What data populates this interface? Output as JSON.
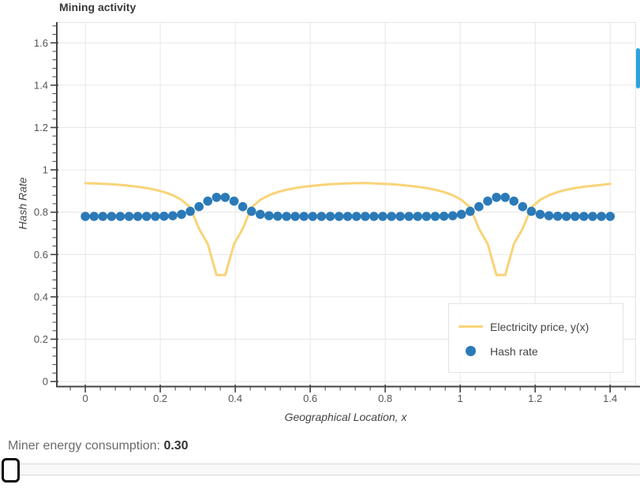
{
  "colors": {
    "electricity": "#f9d377",
    "hash": "#2b7ab8",
    "grid": "#e6e6e6",
    "frame_outline": "#e5e5e5",
    "axis": "#444444",
    "tick_label": "#555555",
    "scrollbar": "#2ea2db"
  },
  "chart_data": {
    "type": "line+scatter",
    "title": "Mining activity",
    "xlabel": "Geographical Location, x",
    "ylabel": "Hash Rate",
    "xlim": [
      -0.076,
      1.467
    ],
    "ylim": [
      -0.022,
      1.698
    ],
    "x_ticks": [
      0,
      0.2,
      0.4,
      0.6,
      0.8,
      1,
      1.2,
      1.4
    ],
    "y_ticks": [
      0,
      0.2,
      0.4,
      0.6,
      0.8,
      1,
      1.2,
      1.4,
      1.6
    ],
    "x_minor_step": 0.04,
    "y_minor_step": 0.04,
    "grid": true,
    "legend_position": "bottom-right",
    "x": [
      0,
      0.0233,
      0.0467,
      0.07,
      0.0933,
      0.1167,
      0.14,
      0.1633,
      0.1867,
      0.21,
      0.2333,
      0.2567,
      0.28,
      0.3033,
      0.3267,
      0.35,
      0.3733,
      0.3967,
      0.42,
      0.4433,
      0.4667,
      0.49,
      0.5133,
      0.5367,
      0.56,
      0.5833,
      0.6067,
      0.63,
      0.6533,
      0.6767,
      0.7,
      0.7233,
      0.7467,
      0.77,
      0.7933,
      0.8167,
      0.84,
      0.8633,
      0.8867,
      0.91,
      0.9333,
      0.9567,
      0.98,
      1.0033,
      1.0267,
      1.05,
      1.0733,
      1.0967,
      1.12,
      1.1433,
      1.1667,
      1.19,
      1.2133,
      1.2367,
      1.26,
      1.2833,
      1.3067,
      1.33,
      1.3533,
      1.3767,
      1.4
    ],
    "series": [
      {
        "name": "Electricity price, y(x)",
        "type": "line",
        "color": "#f9d377",
        "line_width": 3,
        "y": [
          0.937,
          0.936,
          0.934,
          0.932,
          0.929,
          0.925,
          0.92,
          0.914,
          0.906,
          0.895,
          0.88,
          0.858,
          0.823,
          0.722,
          0.65,
          0.503,
          0.503,
          0.65,
          0.722,
          0.823,
          0.858,
          0.88,
          0.895,
          0.906,
          0.914,
          0.92,
          0.925,
          0.929,
          0.932,
          0.934,
          0.936,
          0.937,
          0.938,
          0.936,
          0.934,
          0.932,
          0.929,
          0.925,
          0.92,
          0.914,
          0.906,
          0.895,
          0.88,
          0.858,
          0.823,
          0.722,
          0.65,
          0.503,
          0.503,
          0.65,
          0.722,
          0.823,
          0.858,
          0.88,
          0.895,
          0.906,
          0.914,
          0.92,
          0.925,
          0.929,
          0.934
        ]
      },
      {
        "name": "Hash rate",
        "type": "scatter",
        "color": "#2b7ab8",
        "radius": 5.3,
        "y": [
          0.78,
          0.78,
          0.78,
          0.78,
          0.78,
          0.78,
          0.78,
          0.78,
          0.78,
          0.781,
          0.783,
          0.79,
          0.804,
          0.826,
          0.852,
          0.87,
          0.87,
          0.852,
          0.826,
          0.804,
          0.79,
          0.783,
          0.781,
          0.78,
          0.78,
          0.78,
          0.78,
          0.78,
          0.78,
          0.78,
          0.78,
          0.78,
          0.78,
          0.78,
          0.78,
          0.78,
          0.78,
          0.78,
          0.78,
          0.78,
          0.78,
          0.781,
          0.783,
          0.79,
          0.804,
          0.826,
          0.852,
          0.87,
          0.87,
          0.852,
          0.826,
          0.804,
          0.79,
          0.783,
          0.781,
          0.78,
          0.78,
          0.78,
          0.78,
          0.78,
          0.78
        ]
      }
    ]
  },
  "legend": {
    "items": [
      {
        "label": "Electricity price, y(x)",
        "swatch": "line",
        "color": "#f9d377"
      },
      {
        "label": "Hash rate",
        "swatch": "circle",
        "color": "#2b7ab8"
      }
    ]
  },
  "controls": {
    "slider_label": "Miner energy consumption:",
    "slider_value": "0.30"
  }
}
